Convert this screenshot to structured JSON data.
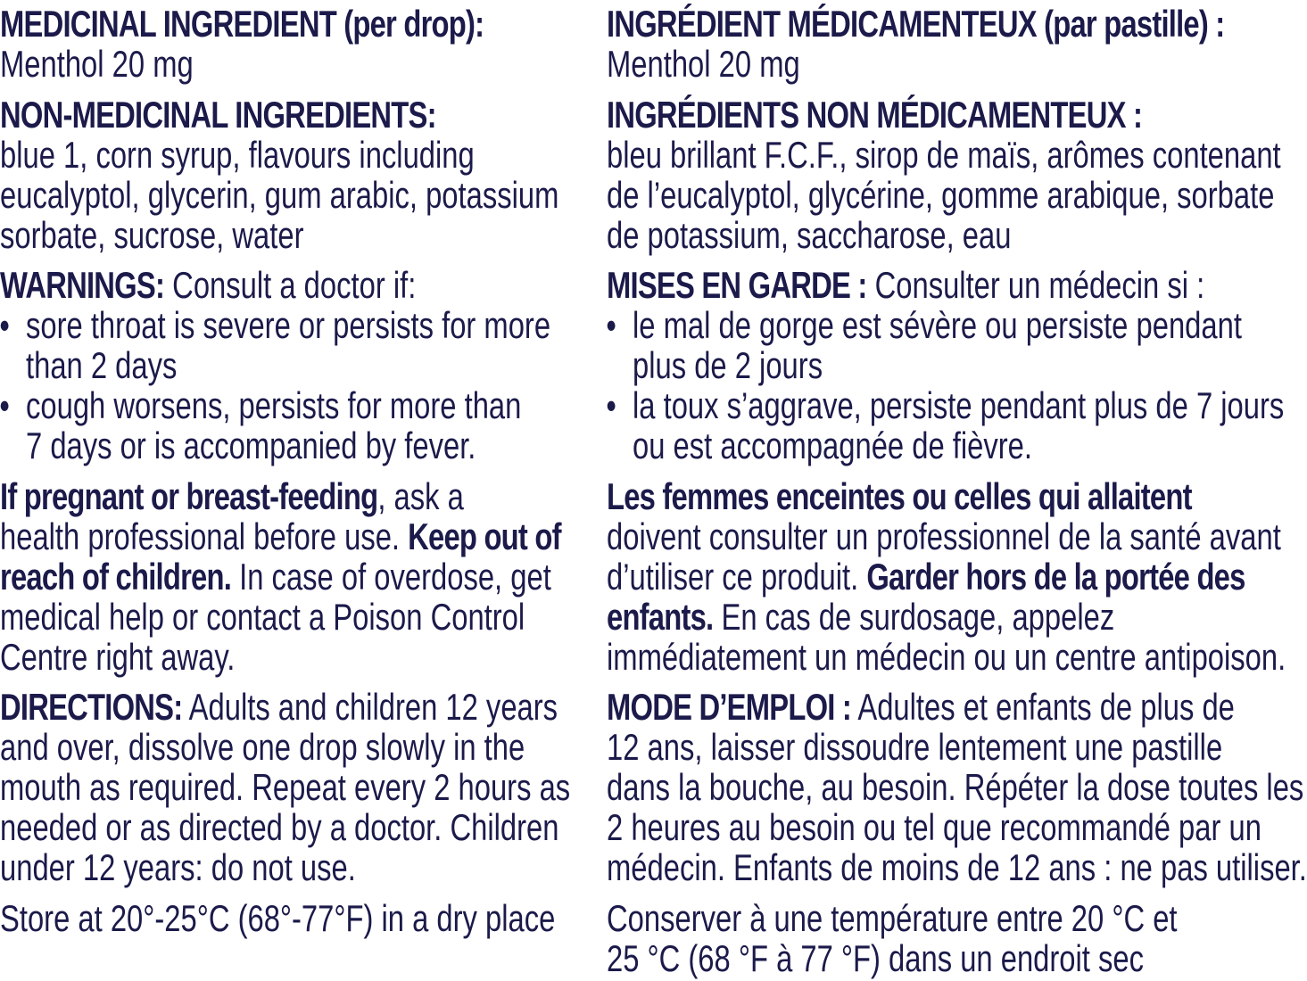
{
  "text_color": "#1b1a4a",
  "left": {
    "sections": [
      {
        "lines": [
          [
            {
              "b": "MEDICINAL INGREDIENT (per drop):"
            }
          ],
          [
            {
              "t": "Menthol 20 mg"
            }
          ]
        ]
      },
      {
        "lines": [
          [
            {
              "b": "NON-MEDICINAL INGREDIENTS:"
            }
          ],
          [
            {
              "t": "blue 1, corn syrup, flavours including"
            }
          ],
          [
            {
              "t": "eucalyptol, glycerin, gum arabic, potassium"
            }
          ],
          [
            {
              "t": "sorbate, sucrose, water"
            }
          ]
        ]
      },
      {
        "lines": [
          [
            {
              "b": "WARNINGS:"
            },
            {
              "t": " Consult a doctor if:"
            }
          ]
        ],
        "bullets": [
          [
            [
              {
                "t": "sore throat is severe or persists for more"
              }
            ],
            [
              {
                "t": "than 2 days"
              }
            ]
          ],
          [
            [
              {
                "t": "cough worsens, persists for more than"
              }
            ],
            [
              {
                "t": "7 days or is accompanied by fever."
              }
            ]
          ]
        ]
      },
      {
        "lines": [
          [
            {
              "b": "If pregnant or breast-feeding"
            },
            {
              "t": ", ask a"
            }
          ],
          [
            {
              "t": "health professional before use. "
            },
            {
              "b": "Keep out of"
            }
          ],
          [
            {
              "b": "reach of children."
            },
            {
              "t": " In case of overdose, get"
            }
          ],
          [
            {
              "t": "medical help or contact a Poison Control"
            }
          ],
          [
            {
              "t": "Centre right away."
            }
          ]
        ]
      },
      {
        "lines": [
          [
            {
              "b": "DIRECTIONS:"
            },
            {
              "t": " Adults and children 12 years"
            }
          ],
          [
            {
              "t": "and over, dissolve one drop slowly in the"
            }
          ],
          [
            {
              "t": "mouth as required. Repeat every 2 hours as"
            }
          ],
          [
            {
              "t": "needed or as directed by a doctor. Children"
            }
          ],
          [
            {
              "t": "under 12 years: do not use."
            }
          ]
        ]
      },
      {
        "lines": [
          [
            {
              "t": "Store at 20°-25°C (68°-77°F) in a dry place"
            }
          ]
        ]
      }
    ]
  },
  "right": {
    "sections": [
      {
        "lines": [
          [
            {
              "b": "INGRÉDIENT MÉDICAMENTEUX (par pastille) :"
            }
          ],
          [
            {
              "t": "Menthol 20 mg"
            }
          ]
        ]
      },
      {
        "lines": [
          [
            {
              "b": "INGRÉDIENTS NON MÉDICAMENTEUX :"
            }
          ],
          [
            {
              "t": "bleu brillant F.C.F., sirop de maïs, arômes contenant"
            }
          ],
          [
            {
              "t": "de l’eucalyptol, glycérine, gomme arabique, sorbate"
            }
          ],
          [
            {
              "t": "de potassium, saccharose, eau"
            }
          ]
        ]
      },
      {
        "lines": [
          [
            {
              "b": "MISES EN GARDE :"
            },
            {
              "t": " Consulter un médecin si :"
            }
          ]
        ],
        "bullets": [
          [
            [
              {
                "t": "le mal de gorge est sévère ou persiste pendant"
              }
            ],
            [
              {
                "t": "plus de 2 jours"
              }
            ]
          ],
          [
            [
              {
                "t": "la toux s’aggrave, persiste pendant plus de 7 jours"
              }
            ],
            [
              {
                "t": "ou est accompagnée de fièvre."
              }
            ]
          ]
        ]
      },
      {
        "lines": [
          [
            {
              "b": "Les femmes enceintes ou celles qui allaitent"
            }
          ],
          [
            {
              "t": "doivent consulter un professionnel de la santé avant"
            }
          ],
          [
            {
              "t": "d’utiliser ce produit. "
            },
            {
              "b": "Garder hors de la portée des"
            }
          ],
          [
            {
              "b": "enfants."
            },
            {
              "t": " En cas de surdosage, appelez"
            }
          ],
          [
            {
              "t": "immédiatement un médecin ou un centre antipoison."
            }
          ]
        ]
      },
      {
        "lines": [
          [
            {
              "b": "MODE D’EMPLOI :"
            },
            {
              "t": " Adultes et enfants de plus de"
            }
          ],
          [
            {
              "t": "12 ans, laisser dissoudre lentement une pastille"
            }
          ],
          [
            {
              "t": "dans la bouche, au besoin. Répéter la dose toutes les"
            }
          ],
          [
            {
              "t": "2 heures au besoin ou tel que recommandé par un"
            }
          ],
          [
            {
              "t": "médecin. Enfants de moins de 12 ans : ne pas utiliser."
            }
          ]
        ]
      },
      {
        "lines": [
          [
            {
              "t": "Conserver à une température entre 20 °C et"
            }
          ],
          [
            {
              "t": "25 °C (68 °F à 77 °F) dans un endroit sec"
            }
          ]
        ]
      }
    ]
  }
}
